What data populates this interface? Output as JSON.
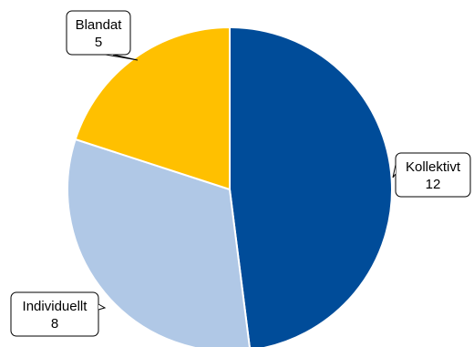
{
  "chart_data": {
    "type": "pie",
    "slices": [
      {
        "label": "Kollektivt",
        "value": 12,
        "color": "#004C99"
      },
      {
        "label": "Individuellt",
        "value": 8,
        "color": "#B0C8E6"
      },
      {
        "label": "Blandat",
        "value": 5,
        "color": "#FFC000"
      }
    ],
    "start": "12 o'clock",
    "direction": "clockwise",
    "labels": "callouts with value"
  }
}
